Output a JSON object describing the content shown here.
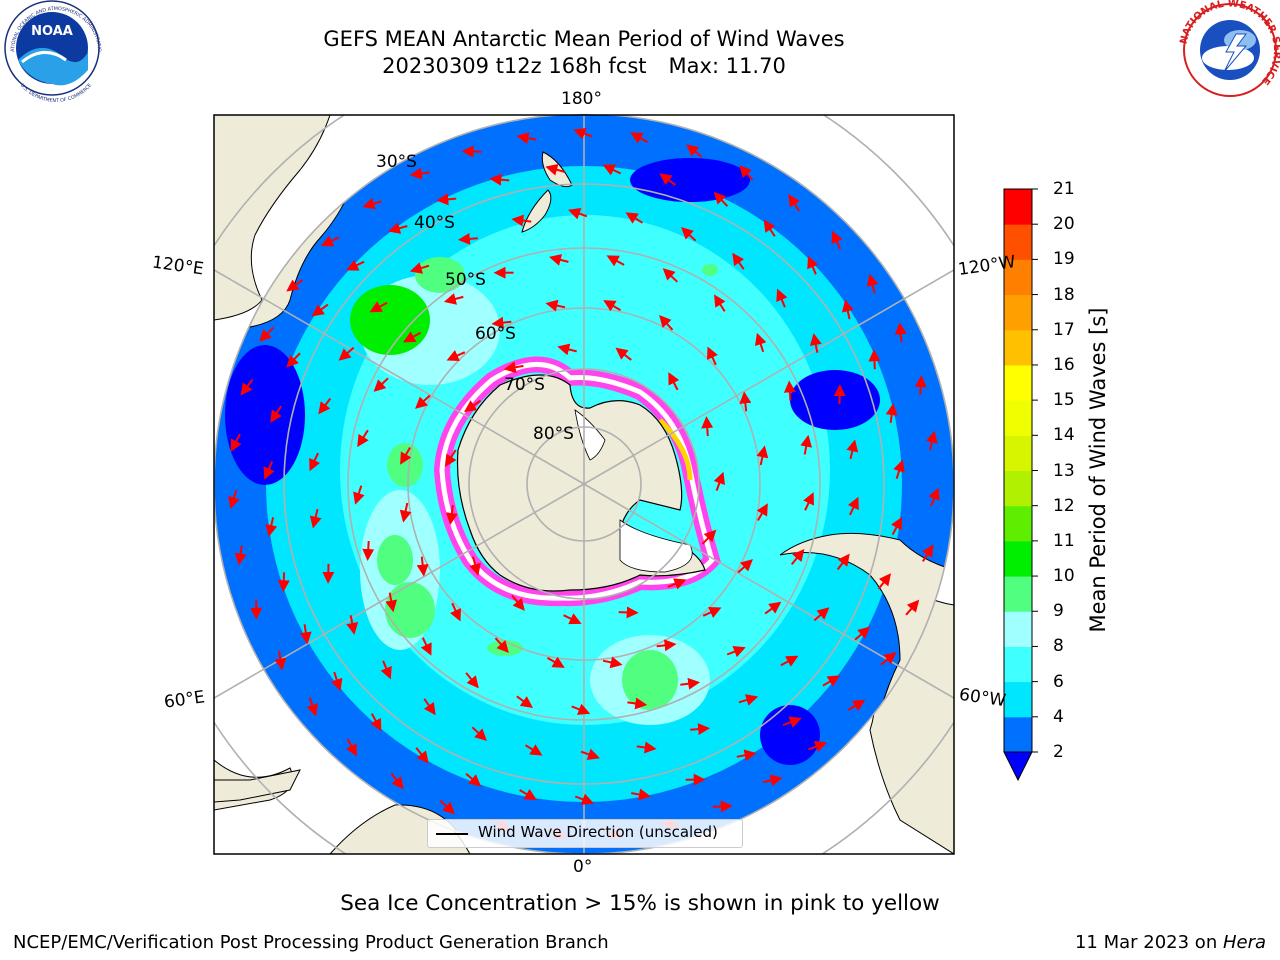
{
  "header": {
    "title_line1": "GEFS MEAN Antarctic Mean Period of Wind Waves",
    "title_date": "20230309 t12z 168h fcst",
    "title_max": "Max: 11.70"
  },
  "logos": {
    "noara_text": "NOAA",
    "noaa_ring_top": "NATIONAL OCEANIC AND ATMOSPHERIC ADMINISTRATION",
    "noaa_ring_bottom": "U.S. DEPARTMENT OF COMMERCE",
    "nws_ring": "NATIONAL WEATHER SERVICE"
  },
  "map": {
    "longitude_labels": [
      "180°",
      "120°E",
      "120°W",
      "60°E",
      "60°W",
      "0°"
    ],
    "latitude_labels": [
      "30°S",
      "40°S",
      "50°S",
      "60°S",
      "70°S",
      "80°S"
    ],
    "legend_label": "Wind Wave Direction (unscaled)",
    "colors": {
      "land": "#efebd9",
      "ice_pink": "#ff44ee",
      "ice_yellow": "#ffd400",
      "arrow": "#ff0000",
      "grid": "#b0b0b0"
    }
  },
  "colorbar": {
    "label": "Mean Period of Wind Waves [s]",
    "ticks": [
      "2",
      "4",
      "6",
      "8",
      "9",
      "10",
      "11",
      "12",
      "13",
      "14",
      "15",
      "16",
      "17",
      "18",
      "19",
      "20",
      "21"
    ],
    "colors": [
      "#0070ff",
      "#00e6ff",
      "#40ffff",
      "#a0ffff",
      "#50ff80",
      "#00ee00",
      "#60ee00",
      "#b0f000",
      "#d8f500",
      "#f0ff00",
      "#ffff00",
      "#ffc000",
      "#ffa000",
      "#ff8000",
      "#ff5000",
      "#ff0000"
    ],
    "under_color": "#0000ff"
  },
  "caption": "Sea Ice Concentration > 15% is shown in pink to yellow",
  "footer": {
    "left": "NCEP/EMC/Verification Post Processing Product Generation Branch",
    "right_prefix": "11 Mar 2023 on ",
    "right_host": "Hera"
  }
}
